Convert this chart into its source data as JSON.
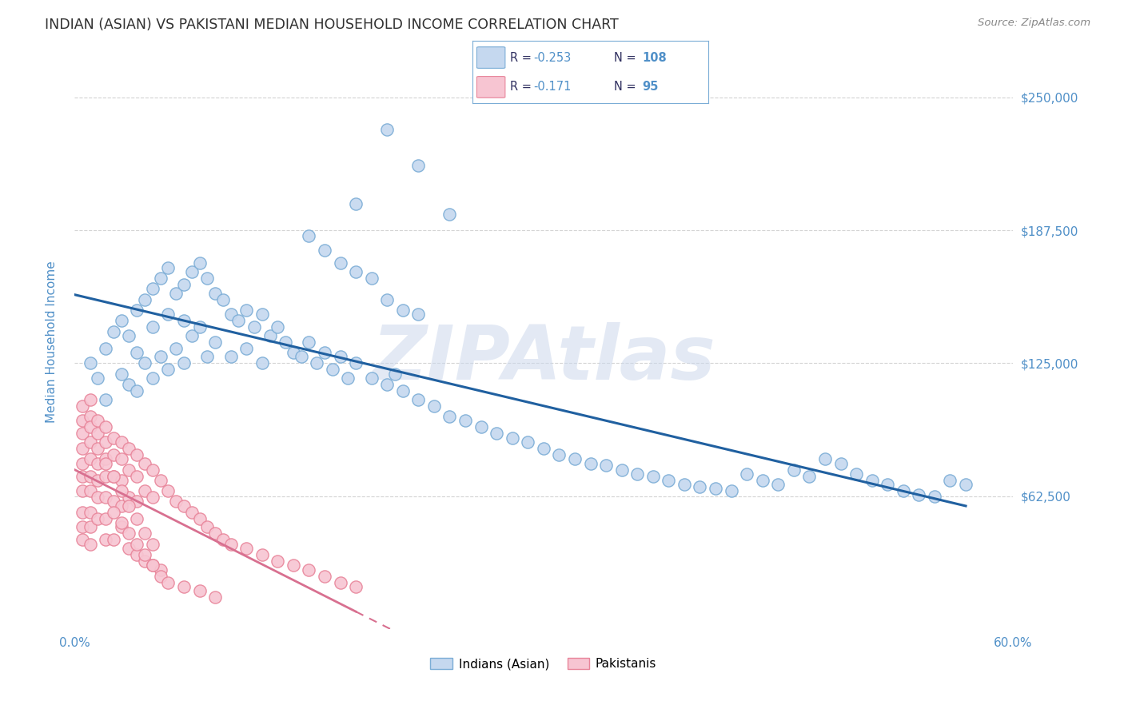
{
  "title": "INDIAN (ASIAN) VS PAKISTANI MEDIAN HOUSEHOLD INCOME CORRELATION CHART",
  "source": "Source: ZipAtlas.com",
  "ylabel": "Median Household Income",
  "yticks": [
    0,
    62500,
    125000,
    187500,
    250000
  ],
  "ytick_labels": [
    "",
    "$62,500",
    "$125,000",
    "$187,500",
    "$250,000"
  ],
  "xlim": [
    0.0,
    60.0
  ],
  "ylim": [
    0,
    270000
  ],
  "legend_R_indian": "-0.253",
  "legend_N_indian": "108",
  "legend_R_pakistani": "-0.171",
  "legend_N_pakistani": "95",
  "watermark": "ZIPAtlas",
  "indian_color": "#c5d8ef",
  "indian_edge_color": "#7badd6",
  "pakistani_color": "#f7c5d2",
  "pakistani_edge_color": "#e8859a",
  "trend_indian_color": "#2060a0",
  "trend_pakistani_color": "#d87090",
  "background_color": "#ffffff",
  "grid_color": "#c8c8c8",
  "axis_label_color": "#5090c8",
  "title_color": "#303030",
  "indian_x": [
    1.0,
    1.5,
    2.0,
    2.0,
    2.5,
    3.0,
    3.0,
    3.5,
    3.5,
    4.0,
    4.0,
    4.0,
    4.5,
    4.5,
    5.0,
    5.0,
    5.0,
    5.5,
    5.5,
    6.0,
    6.0,
    6.0,
    6.5,
    6.5,
    7.0,
    7.0,
    7.0,
    7.5,
    7.5,
    8.0,
    8.0,
    8.5,
    8.5,
    9.0,
    9.0,
    9.5,
    10.0,
    10.0,
    10.5,
    11.0,
    11.0,
    11.5,
    12.0,
    12.0,
    12.5,
    13.0,
    13.5,
    14.0,
    14.5,
    15.0,
    15.5,
    16.0,
    16.5,
    17.0,
    17.5,
    18.0,
    19.0,
    20.0,
    20.5,
    21.0,
    22.0,
    23.0,
    24.0,
    25.0,
    26.0,
    27.0,
    28.0,
    29.0,
    30.0,
    31.0,
    32.0,
    33.0,
    34.0,
    35.0,
    36.0,
    37.0,
    38.0,
    39.0,
    40.0,
    41.0,
    42.0,
    43.0,
    44.0,
    45.0,
    46.0,
    47.0,
    48.0,
    49.0,
    50.0,
    51.0,
    52.0,
    53.0,
    54.0,
    55.0,
    56.0,
    57.0,
    20.0,
    22.0,
    18.0,
    24.0,
    15.0,
    16.0,
    17.0,
    18.0,
    19.0,
    20.0,
    21.0,
    22.0
  ],
  "indian_y": [
    125000,
    118000,
    132000,
    108000,
    140000,
    145000,
    120000,
    138000,
    115000,
    150000,
    130000,
    112000,
    155000,
    125000,
    160000,
    142000,
    118000,
    165000,
    128000,
    170000,
    148000,
    122000,
    158000,
    132000,
    162000,
    145000,
    125000,
    168000,
    138000,
    172000,
    142000,
    165000,
    128000,
    158000,
    135000,
    155000,
    148000,
    128000,
    145000,
    150000,
    132000,
    142000,
    148000,
    125000,
    138000,
    142000,
    135000,
    130000,
    128000,
    135000,
    125000,
    130000,
    122000,
    128000,
    118000,
    125000,
    118000,
    115000,
    120000,
    112000,
    108000,
    105000,
    100000,
    98000,
    95000,
    92000,
    90000,
    88000,
    85000,
    82000,
    80000,
    78000,
    77000,
    75000,
    73000,
    72000,
    70000,
    68000,
    67000,
    66000,
    65000,
    73000,
    70000,
    68000,
    75000,
    72000,
    80000,
    78000,
    73000,
    70000,
    68000,
    65000,
    63000,
    62500,
    70000,
    68000,
    235000,
    218000,
    200000,
    195000,
    185000,
    178000,
    172000,
    168000,
    165000,
    155000,
    150000,
    148000
  ],
  "pakistani_x": [
    0.5,
    0.5,
    0.5,
    0.5,
    0.5,
    0.5,
    0.5,
    0.5,
    0.5,
    0.5,
    1.0,
    1.0,
    1.0,
    1.0,
    1.0,
    1.0,
    1.0,
    1.0,
    1.0,
    1.0,
    1.5,
    1.5,
    1.5,
    1.5,
    1.5,
    1.5,
    1.5,
    2.0,
    2.0,
    2.0,
    2.0,
    2.0,
    2.0,
    2.0,
    2.5,
    2.5,
    2.5,
    2.5,
    3.0,
    3.0,
    3.0,
    3.0,
    3.5,
    3.5,
    3.5,
    4.0,
    4.0,
    4.0,
    4.5,
    4.5,
    5.0,
    5.0,
    5.5,
    6.0,
    6.5,
    7.0,
    7.5,
    8.0,
    8.5,
    9.0,
    9.5,
    10.0,
    11.0,
    12.0,
    13.0,
    14.0,
    15.0,
    16.0,
    17.0,
    18.0,
    3.0,
    2.5,
    3.5,
    4.0,
    4.5,
    5.0,
    5.5,
    2.0,
    2.5,
    3.0,
    3.5,
    4.0,
    4.5,
    5.0,
    2.5,
    3.0,
    3.5,
    4.0,
    4.5,
    5.0,
    5.5,
    6.0,
    7.0,
    8.0,
    9.0
  ],
  "pakistani_y": [
    105000,
    98000,
    92000,
    85000,
    78000,
    72000,
    65000,
    55000,
    48000,
    42000,
    108000,
    100000,
    95000,
    88000,
    80000,
    72000,
    65000,
    55000,
    48000,
    40000,
    98000,
    92000,
    85000,
    78000,
    70000,
    62000,
    52000,
    95000,
    88000,
    80000,
    72000,
    62000,
    52000,
    42000,
    90000,
    82000,
    72000,
    60000,
    88000,
    80000,
    70000,
    58000,
    85000,
    75000,
    62000,
    82000,
    72000,
    60000,
    78000,
    65000,
    75000,
    62000,
    70000,
    65000,
    60000,
    58000,
    55000,
    52000,
    48000,
    45000,
    42000,
    40000,
    38000,
    35000,
    32000,
    30000,
    28000,
    25000,
    22000,
    20000,
    48000,
    42000,
    38000,
    35000,
    32000,
    30000,
    28000,
    78000,
    72000,
    65000,
    58000,
    52000,
    45000,
    40000,
    55000,
    50000,
    45000,
    40000,
    35000,
    30000,
    25000,
    22000,
    20000,
    18000,
    15000
  ]
}
